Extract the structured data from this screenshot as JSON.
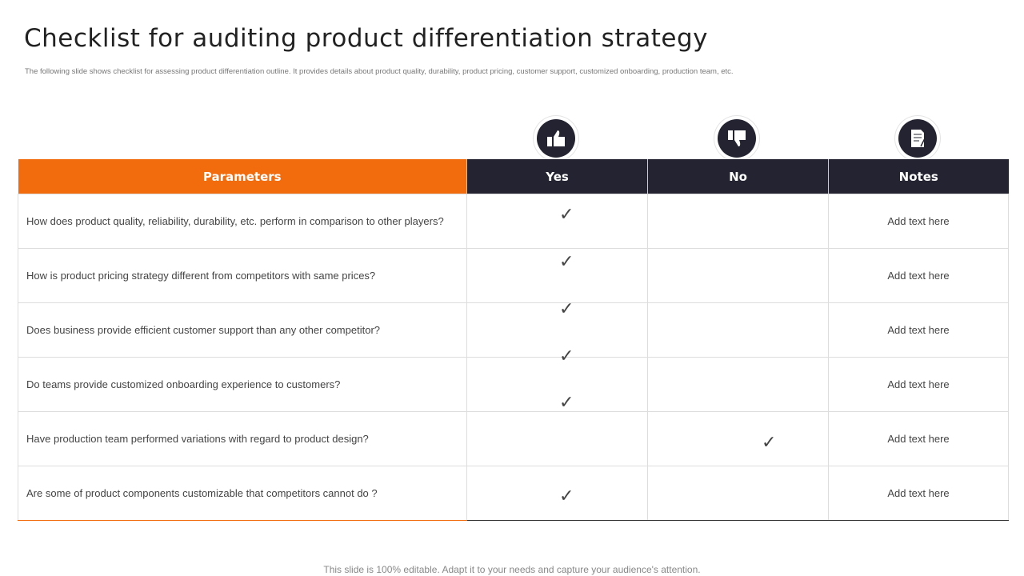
{
  "title": "Checklist for auditing product differentiation strategy",
  "subtitle": "The following slide shows checklist for assessing product differentiation outline. It provides details about product quality, durability, product pricing, customer support, customized onboarding, production team, etc.",
  "headers": {
    "parameters": "Parameters",
    "yes": "Yes",
    "no": "No",
    "notes": "Notes"
  },
  "icons": [
    "thumbs-up-icon",
    "thumbs-down-icon",
    "document-icon"
  ],
  "check_mark": "✓",
  "rows": [
    {
      "question": "How does product quality, reliability, durability, etc. perform in comparison to other players?",
      "answer": "yes",
      "note": "Add text here"
    },
    {
      "question": "How is product pricing strategy different  from competitors with same prices?",
      "answer": "yes",
      "note": "Add text here"
    },
    {
      "question": "Does business provide  efficient customer support than any other competitor?",
      "answer": "yes",
      "note": "Add text here"
    },
    {
      "question": "Do teams provide  customized onboarding  experience  to customers?",
      "answer": "yes",
      "note": "Add text here"
    },
    {
      "question": "Have  production team performed  variations  with regard to product design?",
      "answer": "yes,no",
      "note": "Add text here"
    },
    {
      "question": "Are some of product components customizable that competitors cannot do ?",
      "answer": "yes",
      "note": "Add text here"
    }
  ],
  "footer": "This slide is 100% editable. Adapt it to your needs and capture your audience's attention."
}
